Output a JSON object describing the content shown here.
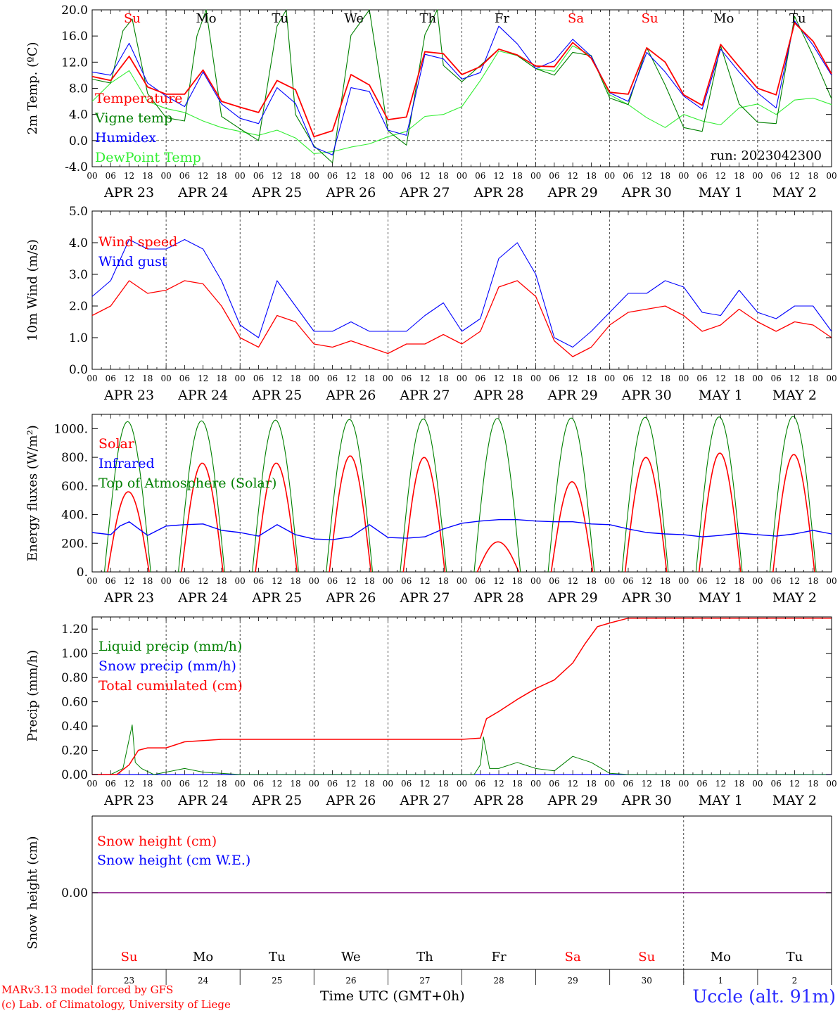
{
  "footer": {
    "model": "MARv3.13 model forced by GFS",
    "credit": "(c) Lab. of Climatology, University of Liege",
    "station": "Uccle (alt. 91m)",
    "x_title": "Time UTC (GMT+0h)"
  },
  "colors": {
    "red": "#ff0000",
    "green": "#008000",
    "blue": "#0000ff",
    "lime": "#33ee33",
    "purple": "#800080",
    "station": "#2b2bff"
  },
  "day_tick_labels": [
    "00",
    "06",
    "12",
    "18"
  ],
  "date_labels": [
    "APR 23",
    "APR 24",
    "APR 25",
    "APR 26",
    "APR 27",
    "APR 28",
    "APR 29",
    "APR 30",
    "MAY  1",
    "MAY  2"
  ],
  "weekday_labels": [
    {
      "text": "Su",
      "color": "#ff0000"
    },
    {
      "text": "Mo",
      "color": "#000000"
    },
    {
      "text": "Tu",
      "color": "#000000"
    },
    {
      "text": "We",
      "color": "#000000"
    },
    {
      "text": "Th",
      "color": "#000000"
    },
    {
      "text": "Fr",
      "color": "#000000"
    },
    {
      "text": "Sa",
      "color": "#ff0000"
    },
    {
      "text": "Su",
      "color": "#ff0000"
    },
    {
      "text": "Mo",
      "color": "#000000"
    },
    {
      "text": "Tu",
      "color": "#000000"
    }
  ],
  "bottom_day_numbers": [
    "23",
    "24",
    "25",
    "26",
    "27",
    "28",
    "29",
    "30",
    "1",
    "2"
  ],
  "chart_data": [
    {
      "id": "temperature",
      "type": "line",
      "ylabel": "2m Temp. (ºC)",
      "ylim": [
        -4,
        20
      ],
      "y_ticks": [
        "-4.0",
        "0.0",
        "4.0",
        "8.0",
        "12.0",
        "16.0",
        "20.0"
      ],
      "annotation": "run: 2023042300",
      "x_unit": "hours since APR 23 00 UTC",
      "series": [
        {
          "name": "Temperature",
          "color": "#ff0000",
          "x": [
            0,
            6,
            12,
            18,
            24,
            30,
            36,
            42,
            48,
            54,
            60,
            66,
            72,
            78,
            84,
            90,
            96,
            102,
            108,
            114,
            120,
            126,
            132,
            138,
            144,
            150,
            156,
            162,
            168,
            174,
            180,
            186,
            192,
            198,
            204,
            210,
            216,
            222,
            228,
            234,
            240
          ],
          "values": [
            9.8,
            9.2,
            12.9,
            8.2,
            7.1,
            7.1,
            10.8,
            6.0,
            5.1,
            4.3,
            9.2,
            7.8,
            0.6,
            1.5,
            10.1,
            8.5,
            3.2,
            3.6,
            13.6,
            13.3,
            10.1,
            11.3,
            14.0,
            13.1,
            11.4,
            11.3,
            15.0,
            12.6,
            7.4,
            7.1,
            14.2,
            12.0,
            7.0,
            5.4,
            14.7,
            11.3,
            8.0,
            7.0,
            18.0,
            15.2,
            10.2
          ]
        },
        {
          "name": "Vigne temp",
          "color": "#008000",
          "x": [
            0,
            6,
            10,
            13,
            18,
            24,
            30,
            34,
            37,
            42,
            48,
            54,
            60,
            63,
            66,
            72,
            78,
            84,
            90,
            96,
            102,
            108,
            112,
            114,
            120,
            126,
            132,
            138,
            144,
            150,
            156,
            162,
            168,
            174,
            180,
            186,
            192,
            198,
            204,
            210,
            216,
            222,
            228,
            234,
            240
          ],
          "values": [
            9.4,
            8.8,
            16.8,
            18.6,
            7.2,
            3.5,
            3.0,
            16.0,
            20.0,
            3.7,
            1.8,
            0.0,
            17.5,
            20.0,
            4.0,
            -0.8,
            -3.4,
            16.1,
            20.0,
            1.5,
            -0.7,
            16.2,
            20.0,
            11.5,
            9.0,
            11.5,
            14.0,
            13.0,
            11.0,
            10.0,
            13.5,
            13.0,
            6.5,
            5.5,
            14.2,
            8.5,
            2.0,
            1.4,
            14.5,
            5.6,
            2.8,
            2.6,
            19.0,
            13.0,
            6.4
          ]
        },
        {
          "name": "Humidex",
          "color": "#0000ff",
          "x": [
            0,
            6,
            12,
            18,
            24,
            30,
            36,
            42,
            48,
            54,
            60,
            66,
            72,
            78,
            84,
            90,
            96,
            102,
            108,
            114,
            120,
            126,
            132,
            138,
            144,
            150,
            156,
            162,
            168,
            174,
            180,
            186,
            192,
            198,
            204,
            210,
            216,
            222,
            228,
            234,
            240
          ],
          "values": [
            10.5,
            10.0,
            14.9,
            8.8,
            6.8,
            5.2,
            10.5,
            5.6,
            3.4,
            2.6,
            8.1,
            5.7,
            -1.0,
            -2.2,
            8.1,
            7.5,
            1.6,
            0.8,
            13.2,
            12.5,
            9.4,
            10.4,
            17.5,
            14.8,
            11.0,
            12.2,
            15.5,
            12.9,
            7.3,
            6.0,
            13.5,
            10.5,
            6.8,
            4.8,
            14.0,
            10.5,
            7.3,
            5.0,
            18.3,
            14.6,
            10.0
          ]
        },
        {
          "name": "DewPoint Temp",
          "color": "#33ee33",
          "x": [
            0,
            6,
            12,
            18,
            24,
            30,
            36,
            42,
            48,
            54,
            60,
            66,
            72,
            78,
            84,
            90,
            96,
            102,
            108,
            114,
            120,
            126,
            132,
            138,
            144,
            150,
            156,
            162,
            168,
            174,
            180,
            186,
            192,
            198,
            204,
            210,
            216,
            222,
            228,
            234,
            240
          ],
          "values": [
            6.0,
            8.8,
            10.7,
            6.0,
            4.9,
            4.3,
            3.0,
            2.0,
            1.4,
            0.8,
            1.6,
            0.4,
            -2.0,
            -1.7,
            -1.0,
            -0.5,
            0.6,
            1.4,
            3.7,
            4.0,
            5.2,
            9.2,
            13.7,
            13.0,
            11.0,
            10.6,
            14.5,
            13.0,
            7.0,
            5.5,
            3.5,
            2.0,
            4.0,
            3.0,
            2.4,
            5.0,
            5.6,
            4.0,
            6.2,
            6.5,
            5.5
          ]
        }
      ]
    },
    {
      "id": "wind",
      "type": "line",
      "ylabel": "10m Wind (m/s)",
      "ylim": [
        0,
        5
      ],
      "y_ticks": [
        "0.0",
        "1.0",
        "2.0",
        "3.0",
        "4.0",
        "5.0"
      ],
      "x_unit": "hours since APR 23 00 UTC",
      "series": [
        {
          "name": "Wind speed",
          "color": "#ff0000",
          "x": [
            0,
            6,
            12,
            18,
            24,
            30,
            36,
            42,
            48,
            54,
            60,
            66,
            72,
            78,
            84,
            90,
            96,
            102,
            108,
            114,
            120,
            126,
            132,
            138,
            144,
            150,
            156,
            162,
            168,
            174,
            180,
            186,
            192,
            198,
            204,
            210,
            216,
            222,
            228,
            234,
            240
          ],
          "values": [
            1.7,
            2.0,
            2.8,
            2.4,
            2.5,
            2.8,
            2.7,
            2.0,
            1.0,
            0.7,
            1.7,
            1.5,
            0.8,
            0.7,
            0.9,
            0.7,
            0.5,
            0.8,
            0.8,
            1.1,
            0.8,
            1.2,
            2.6,
            2.8,
            2.3,
            0.9,
            0.4,
            0.7,
            1.4,
            1.8,
            1.9,
            2.0,
            1.7,
            1.2,
            1.4,
            1.9,
            1.5,
            1.2,
            1.5,
            1.4,
            1.0
          ]
        },
        {
          "name": "Wind gust",
          "color": "#0000ff",
          "x": [
            0,
            6,
            12,
            18,
            24,
            30,
            36,
            42,
            48,
            54,
            60,
            66,
            72,
            78,
            84,
            90,
            96,
            102,
            108,
            114,
            120,
            126,
            132,
            138,
            144,
            150,
            156,
            162,
            168,
            174,
            180,
            186,
            192,
            198,
            204,
            210,
            216,
            222,
            228,
            234,
            240
          ],
          "values": [
            2.3,
            2.8,
            4.1,
            3.8,
            3.8,
            4.1,
            3.8,
            2.8,
            1.4,
            1.0,
            2.8,
            2.0,
            1.2,
            1.2,
            1.5,
            1.2,
            1.2,
            1.2,
            1.7,
            2.1,
            1.2,
            1.6,
            3.5,
            4.0,
            3.0,
            1.0,
            0.7,
            1.2,
            1.8,
            2.4,
            2.4,
            2.8,
            2.6,
            1.8,
            1.7,
            2.5,
            1.8,
            1.6,
            2.0,
            2.0,
            1.2
          ]
        }
      ]
    },
    {
      "id": "energy",
      "type": "line",
      "ylabel": "Energy fluxes (W/m²)",
      "ylim": [
        0,
        1100
      ],
      "y_ticks": [
        "0.",
        "200.",
        "400.",
        "600.",
        "800.",
        "1000."
      ],
      "x_unit": "hours since APR 23 00 UTC",
      "toa_daily_peak": [
        1050,
        1055,
        1060,
        1065,
        1068,
        1072,
        1075,
        1080,
        1083,
        1087
      ],
      "solar_daily_peak": [
        560,
        760,
        760,
        810,
        800,
        210,
        630,
        800,
        830,
        820
      ],
      "series": [
        {
          "name": "Solar",
          "color": "#ff0000"
        },
        {
          "name": "Infrared",
          "color": "#0000ff",
          "x": [
            0,
            6,
            9,
            12,
            18,
            24,
            30,
            36,
            42,
            48,
            54,
            60,
            66,
            72,
            78,
            84,
            90,
            96,
            102,
            108,
            114,
            120,
            126,
            132,
            138,
            144,
            150,
            156,
            162,
            168,
            174,
            180,
            186,
            192,
            198,
            204,
            210,
            216,
            222,
            228,
            234,
            240
          ],
          "values": [
            275,
            260,
            320,
            350,
            255,
            320,
            330,
            335,
            290,
            275,
            250,
            330,
            260,
            230,
            225,
            245,
            330,
            240,
            235,
            245,
            300,
            340,
            355,
            365,
            365,
            355,
            350,
            350,
            335,
            330,
            300,
            275,
            265,
            260,
            245,
            255,
            270,
            260,
            250,
            265,
            290,
            265
          ]
        },
        {
          "name": "Top of Atmosphere (Solar)",
          "color": "#008000"
        }
      ]
    },
    {
      "id": "precip",
      "type": "line",
      "ylabel": "Precip (mm/h)",
      "ylim": [
        0,
        1.3
      ],
      "y_ticks": [
        "0.00",
        "0.20",
        "0.40",
        "0.60",
        "0.80",
        "1.00",
        "1.20"
      ],
      "x_unit": "hours since APR 23 00 UTC",
      "series": [
        {
          "name": "Liquid precip (mm/h)",
          "color": "#008000",
          "x": [
            0,
            6,
            10,
            13,
            14,
            16,
            20,
            24,
            30,
            36,
            48,
            120,
            124,
            126,
            127,
            129,
            132,
            138,
            144,
            150,
            156,
            162,
            168,
            174,
            240
          ],
          "values": [
            0,
            0,
            0.05,
            0.41,
            0.1,
            0.05,
            0,
            0.02,
            0.05,
            0.02,
            0,
            0,
            0,
            0.08,
            0.31,
            0.05,
            0.05,
            0.1,
            0.05,
            0.03,
            0.15,
            0.1,
            0.01,
            0,
            0
          ]
        },
        {
          "name": "Snow precip (mm/h)",
          "color": "#0000ff",
          "x": [
            0,
            240
          ],
          "values": [
            0,
            0
          ]
        },
        {
          "name": "Total cumulated (cm)",
          "color": "#ff0000",
          "x": [
            0,
            8,
            12,
            15,
            18,
            24,
            30,
            36,
            42,
            48,
            120,
            126,
            128,
            132,
            138,
            144,
            150,
            156,
            160,
            164,
            168,
            174,
            240
          ],
          "values": [
            0,
            0,
            0.08,
            0.2,
            0.22,
            0.22,
            0.27,
            0.28,
            0.29,
            0.29,
            0.29,
            0.3,
            0.46,
            0.52,
            0.62,
            0.71,
            0.78,
            0.92,
            1.08,
            1.22,
            1.25,
            1.29,
            1.29
          ]
        }
      ]
    },
    {
      "id": "snow",
      "type": "line",
      "ylabel": "Snow height (cm)",
      "ylim": [
        -1,
        1
      ],
      "y_ticks": [
        "0.00"
      ],
      "x_unit": "hours since APR 23 00 UTC",
      "series": [
        {
          "name": "Snow height (cm)",
          "color": "#ff0000",
          "x": [
            0,
            240
          ],
          "values": [
            0,
            0
          ]
        },
        {
          "name": "Snow height (cm W.E.)",
          "color": "#0000ff",
          "x": [
            0,
            240
          ],
          "values": [
            0,
            0
          ]
        }
      ]
    }
  ]
}
